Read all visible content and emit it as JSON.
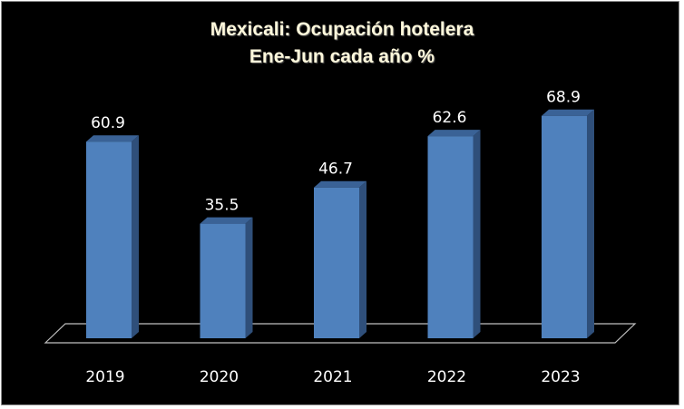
{
  "chart_data": {
    "type": "bar",
    "title": "Mexicali: Ocupación hotelera",
    "subtitle": "Ene-Jun cada año %",
    "categories": [
      "2019",
      "2020",
      "2021",
      "2022",
      "2023"
    ],
    "values": [
      60.9,
      35.5,
      46.7,
      62.6,
      68.9
    ],
    "data_labels": [
      "60.9",
      "35.5",
      "46.7",
      "62.6",
      "68.9"
    ],
    "xlabel": "",
    "ylabel": "",
    "grid": false,
    "legend": "none",
    "style": "3d-column",
    "colors": {
      "background": "#000000",
      "bar_front": "#4f81bd",
      "bar_side": "#2f4f7a",
      "bar_top": "#3a6296",
      "title": "#fff9dc",
      "text": "#ffffff",
      "floor_line": "#bfbfbf"
    }
  }
}
